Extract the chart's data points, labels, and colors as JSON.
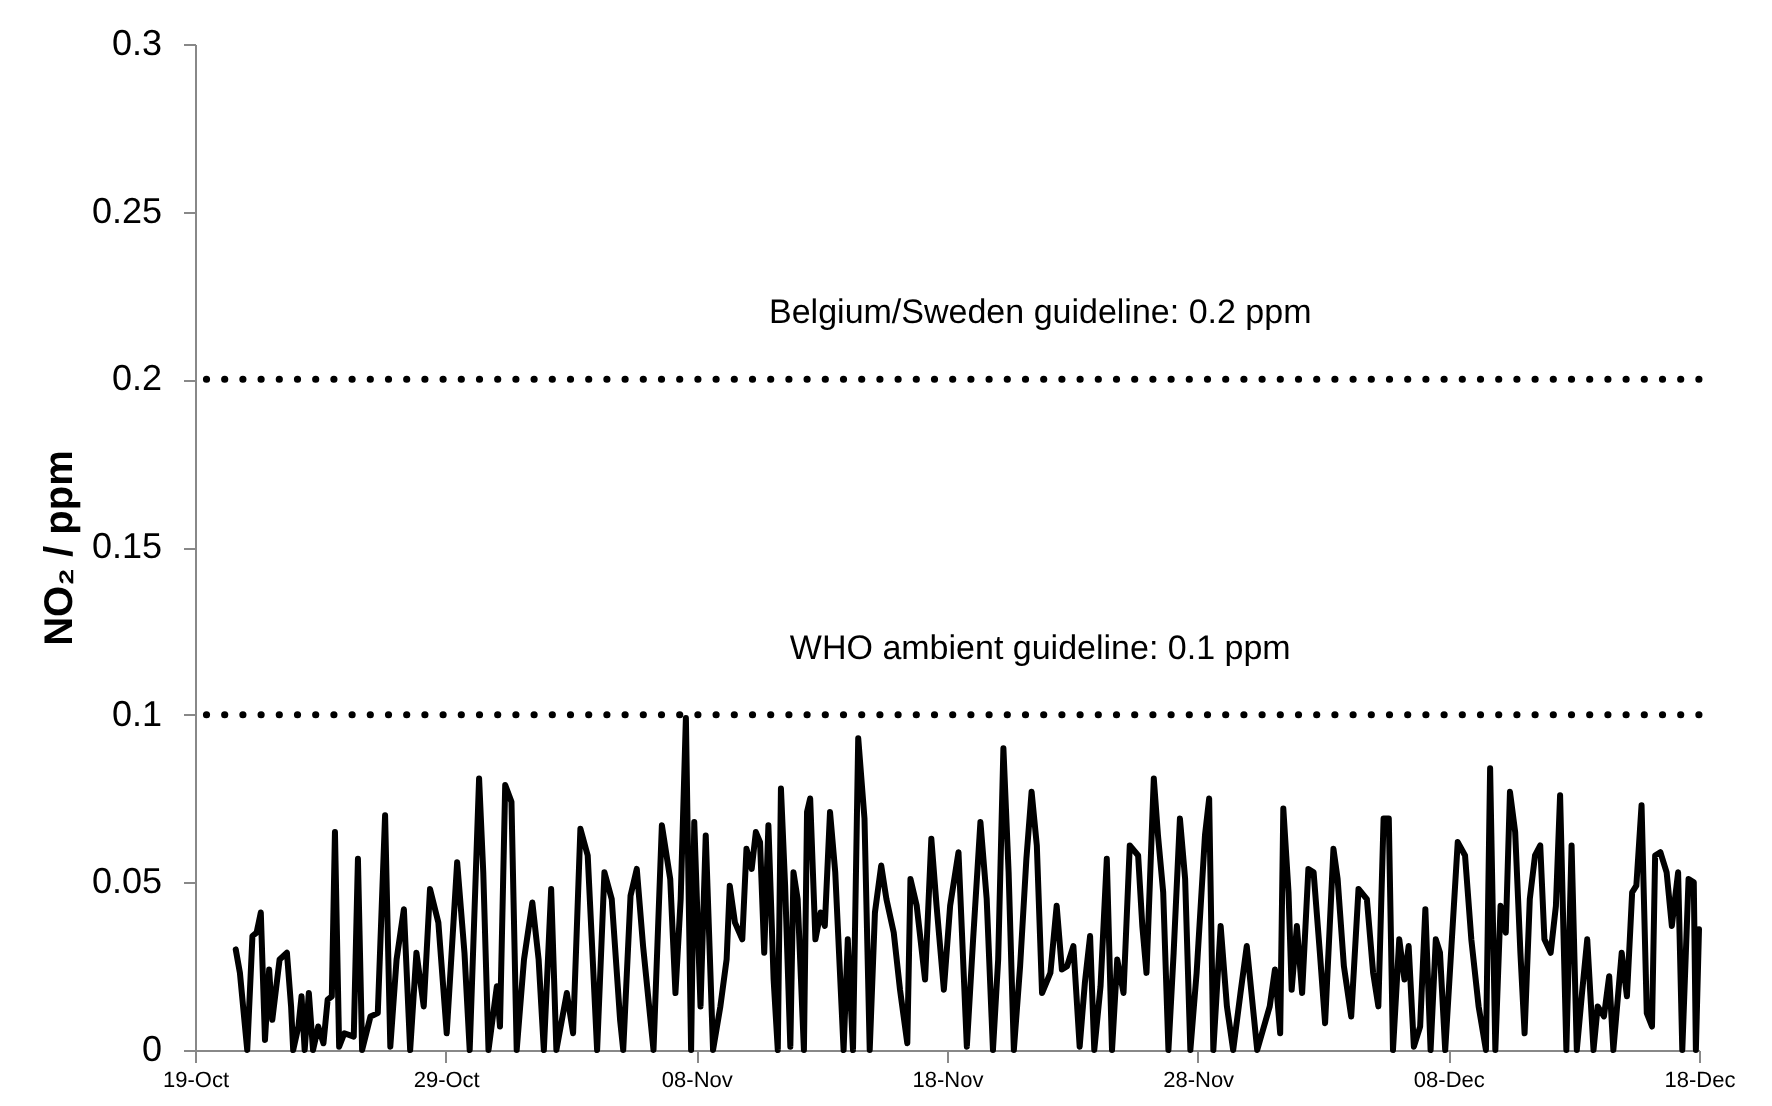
{
  "chart_data": {
    "type": "line",
    "ylabel": "NO₂ / ppm",
    "color": "#000000",
    "grid": false,
    "xlim": [
      "--10-19",
      "--12-18"
    ],
    "xticks": [
      {
        "value": "--10-19",
        "label": "19-Oct"
      },
      {
        "value": "--10-29",
        "label": "29-Oct"
      },
      {
        "value": "--11-08",
        "label": "08-Nov"
      },
      {
        "value": "--11-18",
        "label": "18-Nov"
      },
      {
        "value": "--11-28",
        "label": "28-Nov"
      },
      {
        "value": "--12-08",
        "label": "08-Dec"
      },
      {
        "value": "--12-18",
        "label": "18-Dec"
      }
    ],
    "ylim": [
      0,
      0.3
    ],
    "yticks": [
      0,
      0.05,
      0.1,
      0.15,
      0.2,
      0.25,
      0.3
    ],
    "ref_lines": [
      {
        "axis": "y",
        "value": 0.2,
        "label": "Belgium/Sweden guideline: 0.2 ppm",
        "color": "#000000",
        "line_style": "dotted"
      },
      {
        "axis": "y",
        "value": 0.1,
        "label": "WHO ambient guideline: 0.1 ppm",
        "color": "#000000",
        "line_style": "dotted"
      }
    ],
    "x": [
      "--10-20T15:00",
      "--10-20T19:00",
      "--10-21T02:00",
      "--10-21T07:00",
      "--10-21T11:00",
      "--10-21T15:00",
      "--10-21T19:00",
      "--10-21T23:00",
      "--10-22T02:00",
      "--10-22T09:00",
      "--10-22T16:00",
      "--10-22T20:00",
      "--10-22T22:00",
      "--10-23T03:00",
      "--10-23T06:00",
      "--10-23T09:00",
      "--10-23T13:00",
      "--10-23T17:00",
      "--10-23T22:00",
      "--10-24T03:00",
      "--10-24T07:00",
      "--10-24T11:00",
      "--10-24T14:00",
      "--10-24T18:00",
      "--10-24T23:00",
      "--10-25T08:00",
      "--10-25T12:00",
      "--10-25T16:00",
      "--10-26T00:00",
      "--10-26T07:00",
      "--10-26T14:00",
      "--10-26T19:00",
      "--10-27T01:00",
      "--10-27T08:00",
      "--10-27T14:00",
      "--10-27T20:00",
      "--10-28T03:00",
      "--10-28T09:00",
      "--10-28T17:00",
      "--10-29T01:00",
      "--10-29T11:00",
      "--10-29T18:00",
      "--10-29T23:00",
      "--10-30T08:00",
      "--10-30T12:00",
      "--10-30T17:00",
      "--10-31T01:00",
      "--10-31T04:00",
      "--10-31T09:00",
      "--10-31T15:00",
      "--10-31T20:00",
      "--11-01T03:00",
      "--11-01T11:00",
      "--11-01T17:00",
      "--11-01T22:00",
      "--11-02T05:00",
      "--11-02T10:00",
      "--11-02T20:00",
      "--11-03T02:00",
      "--11-03T09:00",
      "--11-03T16:00",
      "--11-04T01:00",
      "--11-04T08:00",
      "--11-04T15:00",
      "--11-04T23:00",
      "--11-05T02:00",
      "--11-05T09:00",
      "--11-05T15:00",
      "--11-05T21:00",
      "--11-06T07:00",
      "--11-06T15:00",
      "--11-06T23:00",
      "--11-07T04:00",
      "--11-07T09:00",
      "--11-07T14:00",
      "--11-07T19:00",
      "--11-07T22:00",
      "--11-08T04:00",
      "--11-08T09:00",
      "--11-08T16:00",
      "--11-08T23:00",
      "--11-09T05:00",
      "--11-09T08:00",
      "--11-09T13:00",
      "--11-09T20:00",
      "--11-10T00:00",
      "--11-10T05:00",
      "--11-10T09:00",
      "--11-10T13:00",
      "--11-10T17:00",
      "--11-10T21:00",
      "--11-11T02:00",
      "--11-11T06:00",
      "--11-11T09:00",
      "--11-11T13:00",
      "--11-11T18:00",
      "--11-11T21:00",
      "--11-12T01:00",
      "--11-12T07:00",
      "--11-12T10:00",
      "--11-12T13:00",
      "--11-12T18:00",
      "--11-12T23:00",
      "--11-13T03:00",
      "--11-13T08:00",
      "--11-13T13:00",
      "--11-13T21:00",
      "--11-14T01:00",
      "--11-14T06:00",
      "--11-14T11:00",
      "--11-14T17:00",
      "--11-14T22:00",
      "--11-15T03:00",
      "--11-15T09:00",
      "--11-15T14:00",
      "--11-15T21:00",
      "--11-16T03:00",
      "--11-16T10:00",
      "--11-16T13:00",
      "--11-16T19:00",
      "--11-17T03:00",
      "--11-17T09:00",
      "--11-17T14:00",
      "--11-17T21:00",
      "--11-18T03:00",
      "--11-18T11:00",
      "--11-18T19:00",
      "--11-19T01:00",
      "--11-19T08:00",
      "--11-19T14:00",
      "--11-19T20:00",
      "--11-20T01:00",
      "--11-20T06:00",
      "--11-20T11:00",
      "--11-20T16:00",
      "--11-20T22:00",
      "--11-21T04:00",
      "--11-21T09:00",
      "--11-21T14:00",
      "--11-21T19:00",
      "--11-22T03:00",
      "--11-22T09:00",
      "--11-22T14:00",
      "--11-22T19:00",
      "--11-23T01:00",
      "--11-23T07:00",
      "--11-23T12:00",
      "--11-23T17:00",
      "--11-23T21:00",
      "--11-24T03:00",
      "--11-24T09:00",
      "--11-24T14:00",
      "--11-24T19:00",
      "--11-25T01:00",
      "--11-25T07:00",
      "--11-25T15:00",
      "--11-25T19:00",
      "--11-25T23:00",
      "--11-26T06:00",
      "--11-26T10:00",
      "--11-26T15:00",
      "--11-26T20:00",
      "--11-27T01:00",
      "--11-27T07:00",
      "--11-27T12:00",
      "--11-27T17:00",
      "--11-27T23:00",
      "--11-28T07:00",
      "--11-28T11:00",
      "--11-28T15:00",
      "--11-28T22:00",
      "--11-29T04:00",
      "--11-29T10:00",
      "--11-29T17:00",
      "--11-29T23:00",
      "--11-30T09:00",
      "--11-30T21:00",
      "--12-01T02:00",
      "--12-01T07:00",
      "--12-01T10:00",
      "--12-01T15:00",
      "--12-01T18:00",
      "--12-01T23:00",
      "--12-02T04:00",
      "--12-02T10:00",
      "--12-02T15:00",
      "--12-02T21:00",
      "--12-03T02:00",
      "--12-03T10:00",
      "--12-03T14:00",
      "--12-03T20:00",
      "--12-04T03:00",
      "--12-04T10:00",
      "--12-04T18:00",
      "--12-05T00:00",
      "--12-05T05:00",
      "--12-05T10:00",
      "--12-05T15:00",
      "--12-05T19:00",
      "--12-06T01:00",
      "--12-06T06:00",
      "--12-06T10:00",
      "--12-06T15:00",
      "--12-06T21:00",
      "--12-07T02:00",
      "--12-07T07:00",
      "--12-07T12:00",
      "--12-07T16:00",
      "--12-07T21:00",
      "--12-08T03:00",
      "--12-08T09:00",
      "--12-08T16:00",
      "--12-08T22:00",
      "--12-09T05:00",
      "--12-09T12:00",
      "--12-09T16:00",
      "--12-09T21:00",
      "--12-10T02:00",
      "--12-10T07:00",
      "--12-10T11:00",
      "--12-10T16:00",
      "--12-10T21:00",
      "--12-11T01:00",
      "--12-11T06:00",
      "--12-11T11:00",
      "--12-11T16:00",
      "--12-11T20:00",
      "--12-12T02:00",
      "--12-12T07:00",
      "--12-12T11:00",
      "--12-12T17:00",
      "--12-12T22:00",
      "--12-13T03:00",
      "--12-13T08:00",
      "--12-13T13:00",
      "--12-13T19:00",
      "--12-13T23:00",
      "--12-14T05:00",
      "--12-14T10:00",
      "--12-14T14:00",
      "--12-14T22:00",
      "--12-15T03:00",
      "--12-15T08:00",
      "--12-15T12:00",
      "--12-15T17:00",
      "--12-15T22:00",
      "--12-16T03:00",
      "--12-16T06:00",
      "--12-16T11:00",
      "--12-16T17:00",
      "--12-16T22:00",
      "--12-17T04:00",
      "--12-17T08:00",
      "--12-17T14:00",
      "--12-17T19:00",
      "--12-17T21:00",
      "--12-18T00:00"
    ],
    "values": [
      0.03,
      0.023,
      0,
      0.034,
      0.035,
      0.041,
      0.003,
      0.024,
      0.009,
      0.027,
      0.029,
      0.013,
      0,
      0.007,
      0.016,
      0,
      0.017,
      0,
      0.007,
      0.002,
      0.015,
      0.016,
      0.065,
      0.001,
      0.005,
      0.004,
      0.057,
      0,
      0.01,
      0.011,
      0.07,
      0.001,
      0.027,
      0.042,
      0,
      0.029,
      0.013,
      0.048,
      0.038,
      0.005,
      0.056,
      0.029,
      0,
      0.081,
      0.053,
      0,
      0.019,
      0.007,
      0.079,
      0.074,
      0,
      0.027,
      0.044,
      0.027,
      0,
      0.048,
      0,
      0.017,
      0.005,
      0.066,
      0.058,
      0,
      0.053,
      0.045,
      0.009,
      0,
      0.046,
      0.054,
      0.031,
      0,
      0.067,
      0.051,
      0.017,
      0.045,
      0.099,
      0,
      0.068,
      0.013,
      0.064,
      0,
      0.013,
      0.027,
      0.049,
      0.038,
      0.033,
      0.06,
      0.054,
      0.065,
      0.062,
      0.029,
      0.067,
      0.021,
      0,
      0.078,
      0.049,
      0.001,
      0.053,
      0.045,
      0,
      0.071,
      0.075,
      0.033,
      0.041,
      0.037,
      0.071,
      0.053,
      0,
      0.033,
      0,
      0.093,
      0.069,
      0,
      0.041,
      0.055,
      0.045,
      0.035,
      0.018,
      0.002,
      0.051,
      0.043,
      0.021,
      0.063,
      0.043,
      0.018,
      0.043,
      0.059,
      0.001,
      0.033,
      0.068,
      0.045,
      0,
      0.027,
      0.09,
      0.053,
      0,
      0.025,
      0.057,
      0.077,
      0.061,
      0.017,
      0.023,
      0.043,
      0.024,
      0.025,
      0.031,
      0.001,
      0.02,
      0.034,
      0,
      0.019,
      0.057,
      0,
      0.027,
      0.017,
      0.061,
      0.058,
      0.037,
      0.023,
      0.081,
      0.064,
      0.047,
      0,
      0.029,
      0.069,
      0.051,
      0,
      0.023,
      0.064,
      0.075,
      0,
      0.037,
      0.013,
      0,
      0.017,
      0.031,
      0,
      0.013,
      0.024,
      0.005,
      0.072,
      0.047,
      0.018,
      0.037,
      0.017,
      0.054,
      0.053,
      0.029,
      0.008,
      0.06,
      0.051,
      0.025,
      0.01,
      0.048,
      0.045,
      0.023,
      0.013,
      0.069,
      0.069,
      0,
      0.033,
      0.021,
      0.031,
      0.001,
      0.007,
      0.042,
      0,
      0.033,
      0.029,
      0,
      0.031,
      0.062,
      0.058,
      0.033,
      0.013,
      0,
      0.084,
      0,
      0.043,
      0.035,
      0.077,
      0.065,
      0.029,
      0.005,
      0.045,
      0.058,
      0.061,
      0.033,
      0.029,
      0.043,
      0.076,
      0,
      0.061,
      0,
      0.017,
      0.033,
      0,
      0.013,
      0.01,
      0.022,
      0,
      0.029,
      0.016,
      0.047,
      0.049,
      0.073,
      0.011,
      0.007,
      0.058,
      0.059,
      0.053,
      0.037,
      0.053,
      0,
      0.051,
      0.05,
      0,
      0.036
    ]
  }
}
